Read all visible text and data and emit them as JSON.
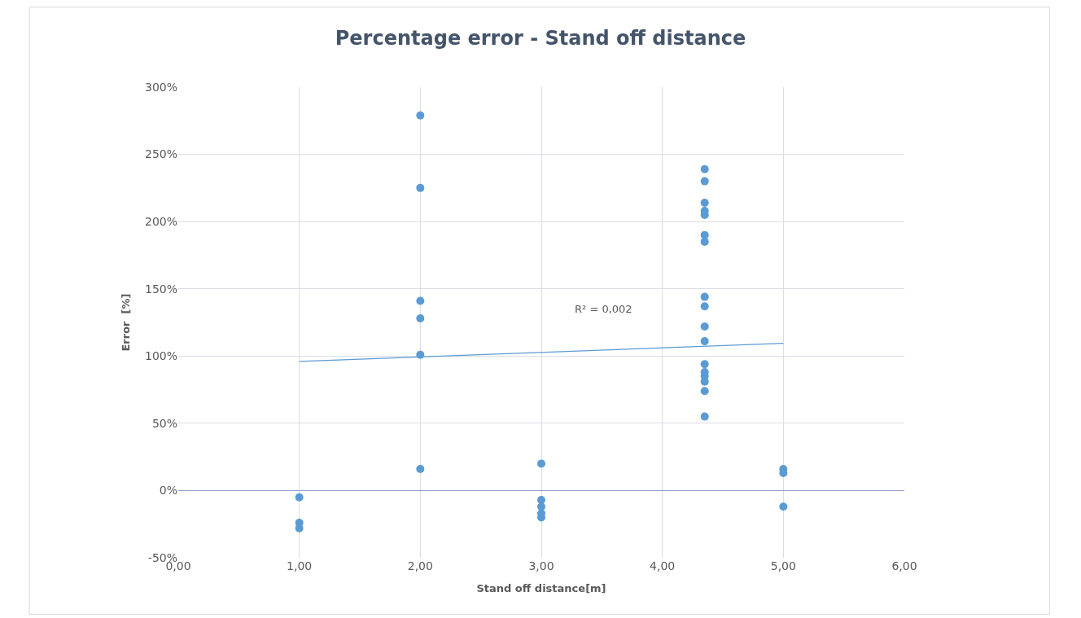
{
  "chart_data": {
    "type": "scatter",
    "title": "Percentage error - Stand off distance",
    "xlabel": "Stand off distance[m]",
    "ylabel": "Error  [%]",
    "series": [
      {
        "color": "#5b9bd5",
        "marker": "circle",
        "x": [
          1,
          1,
          1,
          2,
          2,
          2,
          2,
          2,
          2,
          3,
          3,
          3,
          3,
          3,
          4.35,
          4.35,
          4.35,
          4.35,
          4.35,
          4.35,
          4.35,
          4.35,
          4.35,
          4.35,
          4.35,
          4.35,
          4.35,
          4.35,
          4.35,
          4.35,
          4.35,
          5,
          5,
          5
        ],
        "values": [
          -5,
          -24,
          -28,
          279,
          225,
          141,
          128,
          101,
          16,
          20,
          -7,
          -12,
          -17,
          -20,
          239,
          230,
          214,
          208,
          205,
          190,
          185,
          144,
          137,
          122,
          111,
          94,
          88,
          85,
          81,
          74,
          55,
          16,
          13,
          -12
        ]
      },
      {
        "type": "line",
        "color": "#5b9bd5",
        "x": [
          1,
          5
        ],
        "values": [
          96,
          109.5
        ]
      }
    ],
    "annotations": [
      "R² = 0,002"
    ],
    "ref_lines": [
      {
        "axis": "y",
        "value": 0,
        "color": "#8ea2c6"
      }
    ],
    "xlim": [
      0,
      6
    ],
    "xticks": [
      {
        "value": 0,
        "label": "0,00"
      },
      {
        "value": 1,
        "label": "1,00"
      },
      {
        "value": 2,
        "label": "2,00"
      },
      {
        "value": 3,
        "label": "3,00"
      },
      {
        "value": 4,
        "label": "4,00"
      },
      {
        "value": 5,
        "label": "5,00"
      },
      {
        "value": 6,
        "label": "6,00"
      }
    ],
    "ylim": [
      -50,
      300
    ],
    "yticks": [
      {
        "value": -50,
        "label": "-50%"
      },
      {
        "value": 0,
        "label": "0%"
      },
      {
        "value": 50,
        "label": "50%"
      },
      {
        "value": 100,
        "label": "100%"
      },
      {
        "value": 150,
        "label": "150%"
      },
      {
        "value": 200,
        "label": "200%"
      },
      {
        "value": 250,
        "label": "250%"
      },
      {
        "value": 300,
        "label": "300%"
      }
    ],
    "grid": true
  }
}
